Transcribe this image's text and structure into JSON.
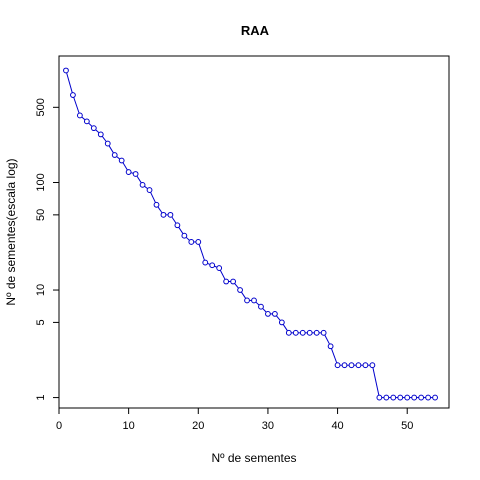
{
  "chart_data": {
    "type": "line",
    "title": "RAA",
    "xlabel": "Nº de sementes",
    "ylabel": "Nº de sementes(escala log)",
    "y_scale": "log",
    "xlim": [
      0,
      56
    ],
    "ylim": [
      0.8,
      1500
    ],
    "xticks": [
      0,
      10,
      20,
      30,
      40,
      50
    ],
    "yticks": [
      1,
      5,
      10,
      50,
      100,
      500
    ],
    "grid": false,
    "series": [
      {
        "color": "#0000cc",
        "marker": "open-circle",
        "x": [
          1,
          2,
          3,
          4,
          5,
          6,
          7,
          8,
          9,
          10,
          11,
          12,
          13,
          14,
          15,
          16,
          17,
          18,
          19,
          20,
          21,
          22,
          23,
          24,
          25,
          26,
          27,
          28,
          29,
          30,
          31,
          32,
          33,
          34,
          35,
          36,
          37,
          38,
          39,
          40,
          41,
          42,
          43,
          44,
          45,
          46,
          47,
          48,
          49,
          50,
          51,
          52,
          53,
          54
        ],
        "y": [
          1100,
          650,
          420,
          370,
          320,
          280,
          230,
          180,
          160,
          125,
          120,
          95,
          85,
          62,
          50,
          50,
          40,
          32,
          28,
          28,
          18,
          17,
          16,
          12,
          12,
          10,
          8,
          8,
          7,
          6,
          6,
          5,
          4,
          4,
          4,
          4,
          4,
          4,
          3,
          2,
          2,
          2,
          2,
          2,
          2,
          1,
          1,
          1,
          1,
          1,
          1,
          1,
          1,
          1
        ]
      }
    ]
  }
}
